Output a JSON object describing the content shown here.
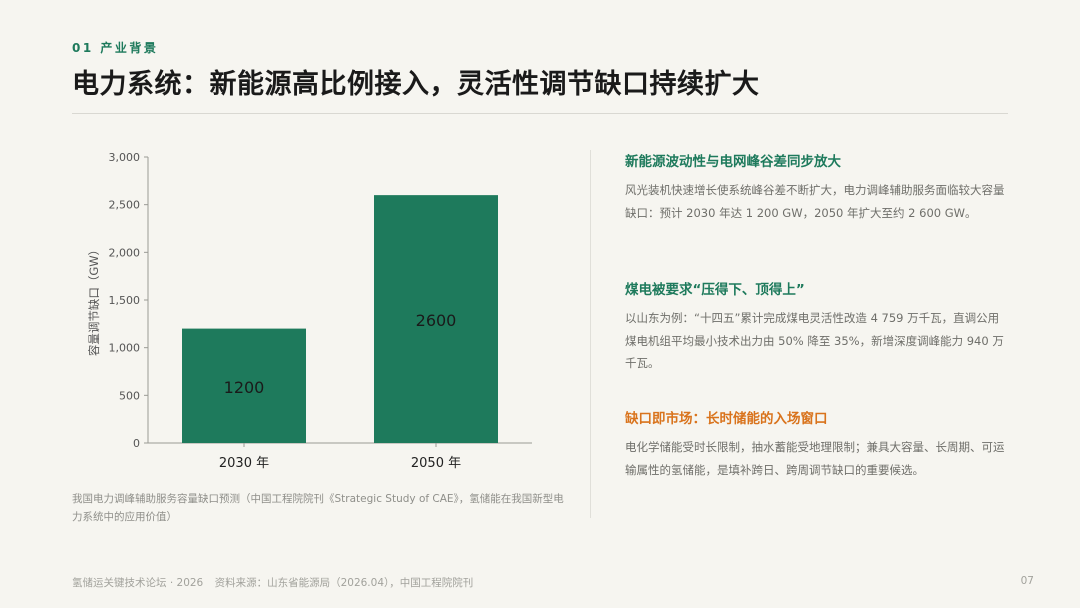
{
  "header": {
    "section": "01 产业背景",
    "title": "电力系统：新能源高比例接入，灵活性调节缺口持续扩大"
  },
  "chart_data": {
    "type": "bar",
    "categories": [
      "2030 年",
      "2050 年"
    ],
    "values": [
      1200,
      2600
    ],
    "data_labels": [
      "1200",
      "2600"
    ],
    "ylabel": "容量调节缺口（GW）",
    "ylim": [
      0,
      3000
    ],
    "yticks": [
      0,
      500,
      1000,
      1500,
      2000,
      2500,
      3000
    ],
    "ytick_labels": [
      "0",
      "500",
      "1,000",
      "1,500",
      "2,000",
      "2,500",
      "3,000"
    ],
    "bar_color": "#1e7a5c",
    "grid": false,
    "legend": "none"
  },
  "caption": "我国电力调峰辅助服务容量缺口预测（中国工程院院刊《Strategic Study of CAE》，氢储能在我国新型电力系统中的应用价值）",
  "points": [
    {
      "title": "新能源波动性与电网峰谷差同步放大",
      "text": "风光装机快速增长使系统峰谷差不断扩大，电力调峰辅助服务面临较大容量缺口：预计 2030 年达 1 200 GW，2050 年扩大至约 2 600 GW。"
    },
    {
      "title": "煤电被要求“压得下、顶得上”",
      "text": "以山东为例：“十四五”累计完成煤电灵活性改造 4 759 万千瓦，直调公用煤电机组平均最小技术出力由 50% 降至 35%，新增深度调峰能力 940 万千瓦。"
    },
    {
      "title": "缺口即市场：长时储能的入场窗口",
      "text": "电化学储能受时长限制，抽水蓄能受地理限制；兼具大容量、长周期、可运输属性的氢储能，是填补跨日、跨周调节缺口的重要候选。"
    }
  ],
  "footer": {
    "event": "氢储运关键技术论坛 · 2026",
    "source": "资料来源：山东省能源局（2026.04），中国工程院院刊",
    "page": "07"
  },
  "colors": {
    "accent_green": "#1e7a5c",
    "accent_orange": "#d9731c",
    "background": "#f6f5f0"
  }
}
